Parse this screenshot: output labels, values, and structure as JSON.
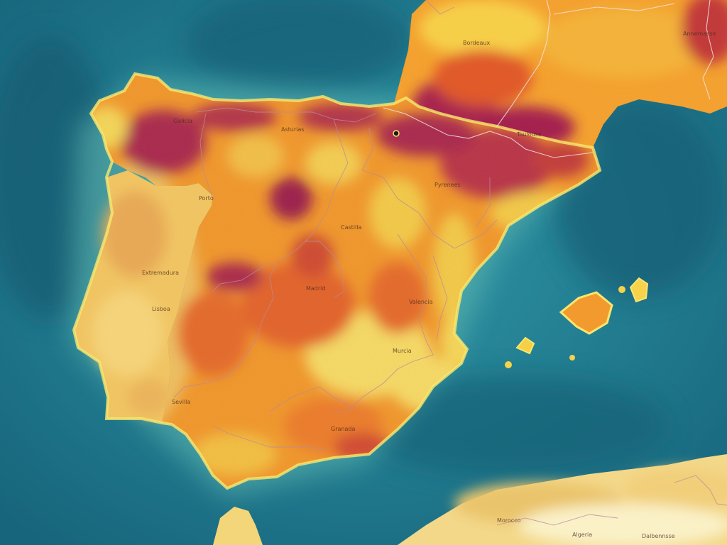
{
  "map": {
    "colors": {
      "sea_deep": "#1a6f86",
      "sea_light": "#2f97a6",
      "land_low": "#f7e27a",
      "land_mid": "#f39a2b",
      "land_high": "#e0562a",
      "land_peak": "#9a1f4e",
      "portugal": "#f0c05a",
      "africa": "#f6e7a8"
    },
    "labels": [
      {
        "id": "label-bordeaux",
        "text": "Bordeaux"
      },
      {
        "id": "label-toulouse-area",
        "text": "Toulouse"
      },
      {
        "id": "label-northeast-france",
        "text": "Annemasse"
      },
      {
        "id": "label-galicia",
        "text": "Galicia"
      },
      {
        "id": "label-asturias",
        "text": "Asturias"
      },
      {
        "id": "label-pyrenees",
        "text": "Pyrenees"
      },
      {
        "id": "label-porto",
        "text": "Porto"
      },
      {
        "id": "label-castilla",
        "text": "Castilla"
      },
      {
        "id": "label-madrid",
        "text": "Madrid"
      },
      {
        "id": "label-extremadura",
        "text": "Extremadura"
      },
      {
        "id": "label-valencia",
        "text": "Valencia"
      },
      {
        "id": "label-lisboa",
        "text": "Lisboa"
      },
      {
        "id": "label-sevilla",
        "text": "Sevilla"
      },
      {
        "id": "label-granada",
        "text": "Granada"
      },
      {
        "id": "label-murcia",
        "text": "Murcia"
      },
      {
        "id": "label-morocco",
        "text": "Morocco"
      },
      {
        "id": "label-algeria",
        "text": "Algeria"
      },
      {
        "id": "label-algeria-east",
        "text": "Dalbennsse"
      }
    ]
  }
}
